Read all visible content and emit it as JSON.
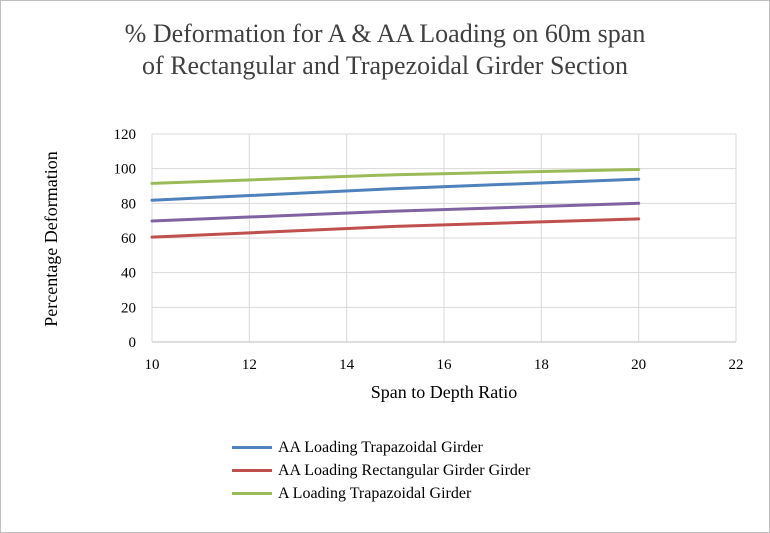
{
  "chart_data": {
    "type": "line",
    "title_lines": [
      "% Deformation for A & AA Loading on 60m span",
      "of Rectangular  and Trapezoidal  Girder  Section"
    ],
    "xlabel": "Span to Depth Ratio",
    "ylabel": "Percentage Deformation",
    "xlim": [
      10,
      22
    ],
    "ylim": [
      0,
      120
    ],
    "xticks": [
      10,
      12,
      14,
      16,
      18,
      20,
      22
    ],
    "yticks": [
      0,
      20,
      40,
      60,
      80,
      100,
      120
    ],
    "grid": true,
    "legend_position": "bottom",
    "series": [
      {
        "name": "AA Loading Trapazoidal Girder",
        "color": "#4f81bd",
        "in_legend": true,
        "x": [
          10,
          15,
          20
        ],
        "y": [
          81.8,
          88.5,
          94
        ]
      },
      {
        "name": "AA Loading Rectangular Girder Girder",
        "color": "#c0504d",
        "in_legend": true,
        "x": [
          10,
          15,
          20
        ],
        "y": [
          60.5,
          66.7,
          71
        ]
      },
      {
        "name": "A Loading Trapazoidal Girder",
        "color": "#9bbb59",
        "in_legend": true,
        "x": [
          10,
          15,
          20
        ],
        "y": [
          91.5,
          96.5,
          99.5
        ]
      },
      {
        "name": "",
        "color": "#8064a2",
        "in_legend": false,
        "x": [
          10,
          15,
          20
        ],
        "y": [
          69.8,
          75.5,
          80
        ]
      }
    ]
  }
}
